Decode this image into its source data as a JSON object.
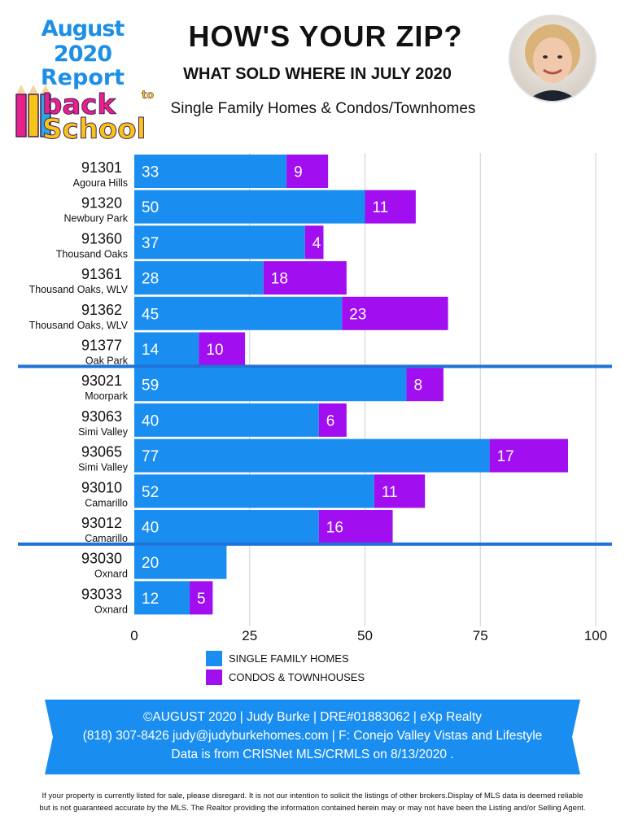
{
  "header": {
    "badge_line1": "August 2020",
    "badge_line2": "Report",
    "badge_word1": "back",
    "badge_word2": "to",
    "badge_word3": "School",
    "title": "HOW'S YOUR ZIP?",
    "subtitle": "WHAT SOLD WHERE IN JULY 2020",
    "subtitle2": "Single Family Homes & Condos/Townhomes",
    "avatar_icon": "portrait-photo"
  },
  "chart_data": {
    "type": "bar",
    "orientation": "horizontal",
    "stacked": true,
    "title": "",
    "xlim": [
      0,
      100
    ],
    "x_ticks": [
      0,
      25,
      50,
      75,
      100
    ],
    "grid": true,
    "legend_position": "bottom",
    "categories": [
      {
        "zip": "91301",
        "area": "Agoura Hills"
      },
      {
        "zip": "91320",
        "area": "Newbury Park"
      },
      {
        "zip": "91360",
        "area": "Thousand Oaks"
      },
      {
        "zip": "91361",
        "area": "Thousand Oaks, WLV"
      },
      {
        "zip": "91362",
        "area": "Thousand Oaks, WLV"
      },
      {
        "zip": "91377",
        "area": "Oak Park"
      },
      {
        "zip": "93021",
        "area": "Moorpark"
      },
      {
        "zip": "93063",
        "area": "Simi Valley"
      },
      {
        "zip": "93065",
        "area": "Simi Valley"
      },
      {
        "zip": "93010",
        "area": "Camarillo"
      },
      {
        "zip": "93012",
        "area": "Camarillo"
      },
      {
        "zip": "93030",
        "area": "Oxnard"
      },
      {
        "zip": "93033",
        "area": "Oxnard"
      }
    ],
    "group_dividers_after": [
      5,
      10
    ],
    "series": [
      {
        "name": "SINGLE FAMILY HOMES",
        "color": "#1a8ef0",
        "values": [
          33,
          50,
          37,
          28,
          45,
          14,
          59,
          40,
          77,
          52,
          40,
          20,
          12
        ]
      },
      {
        "name": "CONDOS & TOWNHOUSES",
        "color": "#a10ef0",
        "values": [
          9,
          11,
          4,
          18,
          23,
          10,
          8,
          6,
          17,
          11,
          16,
          0,
          5
        ]
      }
    ]
  },
  "colors": {
    "accent_blue": "#1a8ef0",
    "accent_purple": "#a10ef0",
    "divider": "#1f72d8",
    "footer_bg": "#1a8ef0"
  },
  "footer": {
    "line1": "©AUGUST 2020  |  Judy Burke  |  DRE#01883062  |  eXp Realty",
    "line2": "(818) 307-8426  judy@judyburkehomes.com | F: Conejo Valley Vistas and Lifestyle",
    "line3": "Data is from CRISNet MLS/CRMLS on 8/13/2020 ."
  },
  "disclaimer": {
    "line1": "If your property is currently listed for sale, please disregard. It is not our intention to solicit the listings of other brokers.Display of MLS data is deemed reliable",
    "line2": "but is not guaranteed accurate by the MLS. The Realtor providing the information contained herein may or may not have been the Listing and/or Selling Agent."
  }
}
